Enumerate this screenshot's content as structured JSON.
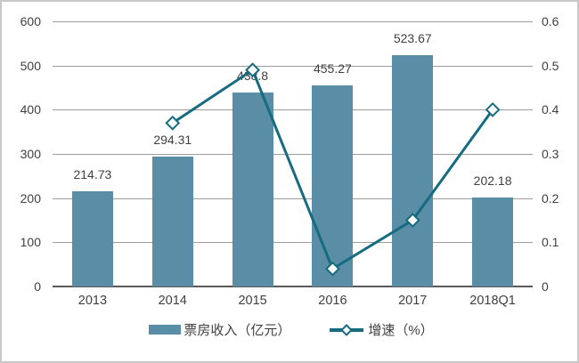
{
  "chart_data": {
    "type": "bar",
    "categories": [
      "2013",
      "2014",
      "2015",
      "2016",
      "2017",
      "2018Q1"
    ],
    "series": [
      {
        "name": "票房收入（亿元）",
        "type": "bar",
        "axis": "left",
        "values": [
          214.73,
          294.31,
          438.8,
          455.27,
          523.67,
          202.18
        ],
        "labels": [
          "214.73",
          "294.31",
          "438.8",
          "455.27",
          "523.67",
          "202.18"
        ]
      },
      {
        "name": "增速（%）",
        "type": "line",
        "axis": "right",
        "values": [
          null,
          0.37,
          0.49,
          0.04,
          0.15,
          0.4
        ]
      }
    ],
    "left_axis": {
      "min": 0,
      "max": 600,
      "step": 100,
      "ticks": [
        "600",
        "500",
        "400",
        "300",
        "200",
        "100",
        "0"
      ]
    },
    "right_axis": {
      "min": 0,
      "max": 0.6,
      "step": 0.1,
      "ticks": [
        "0.6",
        "0.5",
        "0.4",
        "0.3",
        "0.2",
        "0.1",
        "0"
      ]
    },
    "grid": true,
    "legend_position": "bottom",
    "colors": {
      "bar": "#5a8da6",
      "line": "#166b80",
      "marker_fill": "#ffffff",
      "gridline": "#9d9d9d",
      "axis_line": "#595959",
      "text": "#404040",
      "border": "#c8c8c8"
    }
  }
}
